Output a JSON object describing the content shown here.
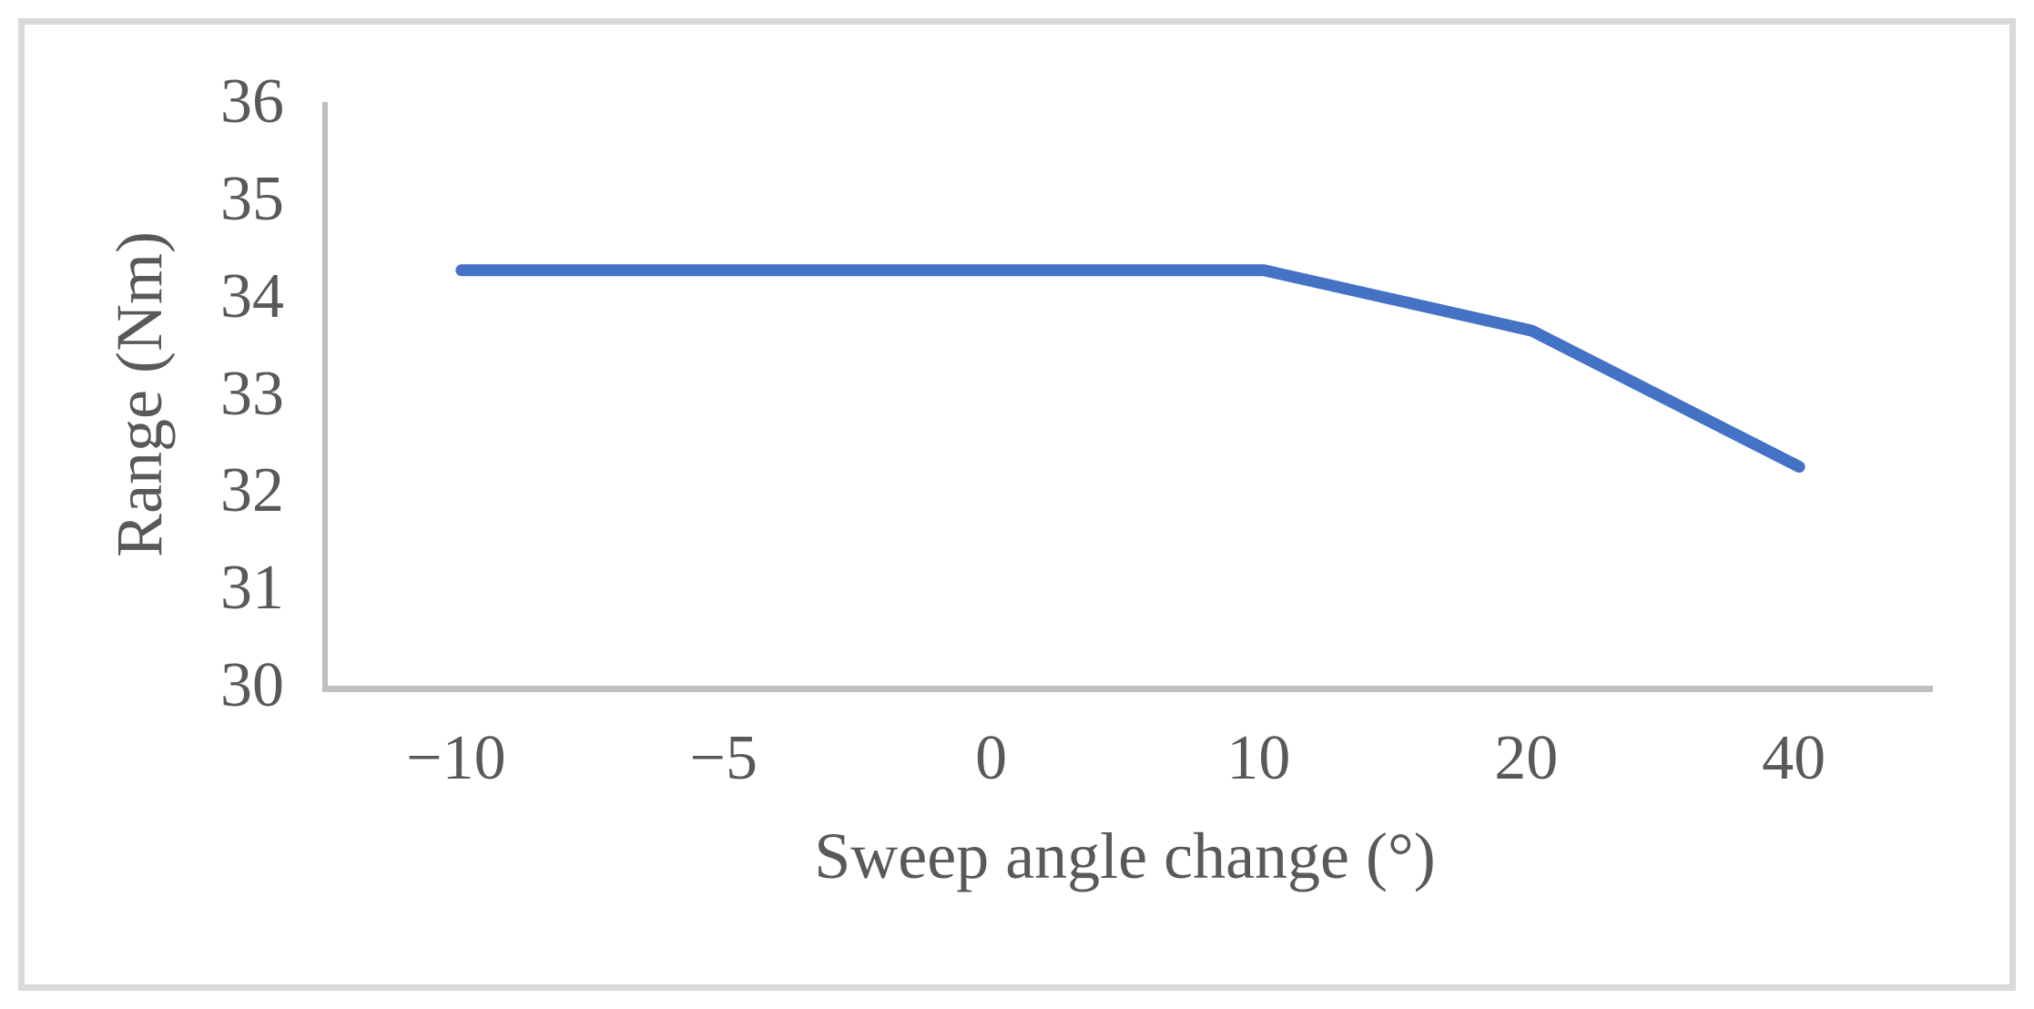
{
  "chart_data": {
    "type": "line",
    "title": "",
    "categories": [
      "−10",
      "−5",
      "0",
      "10",
      "20",
      "40"
    ],
    "series": [
      {
        "name": "Range",
        "values": [
          34.27,
          34.27,
          34.27,
          34.27,
          33.65,
          32.25
        ]
      }
    ],
    "xlabel": "Sweep angle change (°)",
    "ylabel": "Range (Nm)",
    "ylim": [
      30,
      36
    ],
    "yticks": [
      "36",
      "35",
      "34",
      "33",
      "32",
      "31",
      "30"
    ],
    "grid": false,
    "legend_position": "none",
    "colors": {
      "line": "#4472C4",
      "axis": "#BFBFBF",
      "frame": "#D9D9D9",
      "text": "#595959",
      "background": "#FFFFFF"
    }
  }
}
